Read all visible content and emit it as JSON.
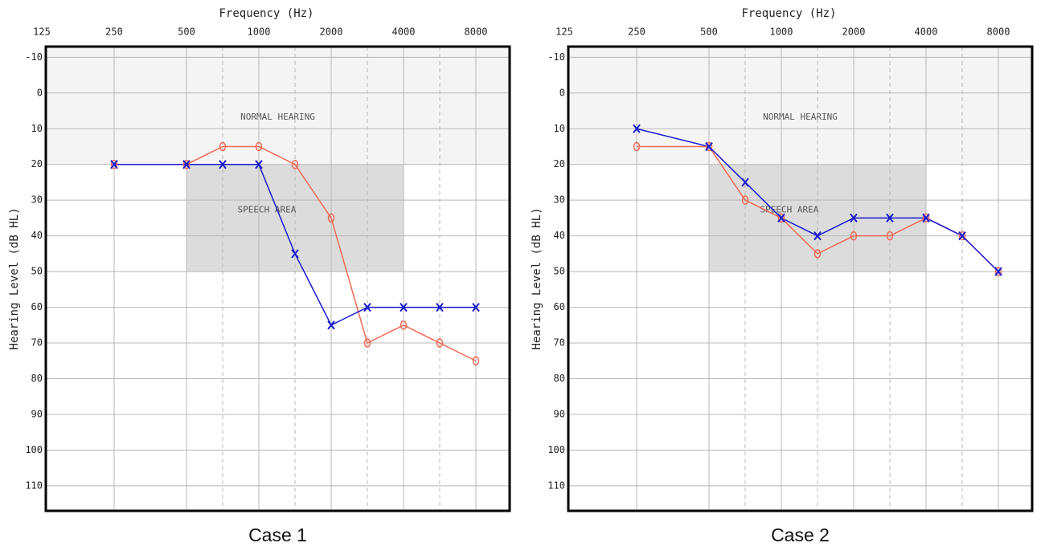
{
  "chart_data": [
    {
      "type": "audiogram",
      "caption": "Case 1",
      "xlabel": "Frequency (Hz)",
      "ylabel": "Hearing Level (dB HL)",
      "categories": [
        "125",
        "250",
        "500",
        null,
        "1000",
        null,
        "2000",
        null,
        "4000",
        null,
        "8000"
      ],
      "ylim": [
        -13,
        117
      ],
      "y_reversed": true,
      "yticks": [
        -10,
        0,
        10,
        20,
        30,
        40,
        50,
        60,
        70,
        80,
        90,
        100,
        110
      ],
      "grid": true,
      "regions": [
        {
          "label": "NORMAL HEARING",
          "y": [
            -13,
            20
          ],
          "color": "#f4f4f4"
        },
        {
          "label": "SPEECH AREA",
          "x": [
            500,
            4000
          ],
          "y": [
            20,
            50
          ],
          "color": "#dcdcdc"
        }
      ],
      "series": [
        {
          "marker": "o",
          "color": "#f06a55",
          "values": [
            null,
            20,
            20,
            15,
            15,
            20,
            35,
            70,
            65,
            70,
            75
          ]
        },
        {
          "marker": "x",
          "color": "#1a1ad0",
          "values": [
            null,
            20,
            20,
            20,
            20,
            45,
            65,
            60,
            60,
            60,
            60
          ]
        }
      ]
    },
    {
      "type": "audiogram",
      "caption": "Case 2",
      "xlabel": "Frequency (Hz)",
      "ylabel": "Hearing Level (dB HL)",
      "categories": [
        "125",
        "250",
        "500",
        null,
        "1000",
        null,
        "2000",
        null,
        "4000",
        null,
        "8000"
      ],
      "ylim": [
        -13,
        117
      ],
      "y_reversed": true,
      "yticks": [
        -10,
        0,
        10,
        20,
        30,
        40,
        50,
        60,
        70,
        80,
        90,
        100,
        110
      ],
      "grid": true,
      "regions": [
        {
          "label": "NORMAL HEARING",
          "y": [
            -13,
            20
          ],
          "color": "#f4f4f4"
        },
        {
          "label": "SPEECH AREA",
          "x": [
            500,
            4000
          ],
          "y": [
            20,
            50
          ],
          "color": "#dcdcdc"
        }
      ],
      "series": [
        {
          "marker": "o",
          "color": "#f06a55",
          "values": [
            null,
            15,
            15,
            30,
            35,
            45,
            40,
            40,
            35,
            40,
            50
          ]
        },
        {
          "marker": "x",
          "color": "#1a1ad0",
          "values": [
            null,
            10,
            15,
            25,
            35,
            40,
            35,
            35,
            35,
            40,
            50
          ]
        }
      ]
    }
  ]
}
